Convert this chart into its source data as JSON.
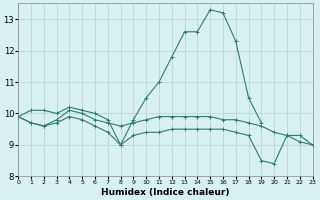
{
  "xlabel": "Humidex (Indice chaleur)",
  "x_values": [
    0,
    1,
    2,
    3,
    4,
    5,
    6,
    7,
    8,
    9,
    10,
    11,
    12,
    13,
    14,
    15,
    16,
    17,
    18,
    19,
    20,
    21,
    22,
    23
  ],
  "line1": [
    9.9,
    10.1,
    10.1,
    10.0,
    10.2,
    10.1,
    10.0,
    9.8,
    9.0,
    9.8,
    10.5,
    11.0,
    11.8,
    12.6,
    12.6,
    13.3,
    13.2,
    12.3,
    10.5,
    9.7,
    null,
    null,
    null,
    null
  ],
  "line2": [
    9.9,
    9.7,
    9.6,
    9.8,
    10.1,
    10.0,
    9.8,
    9.7,
    9.6,
    9.7,
    9.8,
    9.9,
    9.9,
    9.9,
    9.9,
    9.9,
    9.8,
    9.8,
    9.7,
    9.6,
    9.4,
    9.3,
    9.3,
    9.0
  ],
  "line3": [
    9.9,
    9.7,
    9.6,
    9.7,
    9.9,
    9.8,
    9.6,
    9.4,
    9.0,
    9.3,
    9.4,
    9.4,
    9.5,
    9.5,
    9.5,
    9.5,
    9.5,
    9.4,
    9.3,
    8.5,
    8.4,
    9.3,
    9.1,
    9.0
  ],
  "line_color": "#2e7d6e",
  "bg_color": "#d8f0f0",
  "grid_color": "#b8d8d8",
  "xlim": [
    0,
    23
  ],
  "ylim": [
    8.0,
    13.5
  ],
  "yticks": [
    8,
    9,
    10,
    11,
    12,
    13
  ],
  "xtick_labels": [
    "0",
    "1",
    "2",
    "3",
    "4",
    "5",
    "6",
    "7",
    "8",
    "9",
    "10",
    "11",
    "12",
    "13",
    "14",
    "15",
    "16",
    "17",
    "18",
    "19",
    "20",
    "21",
    "22",
    "23"
  ]
}
